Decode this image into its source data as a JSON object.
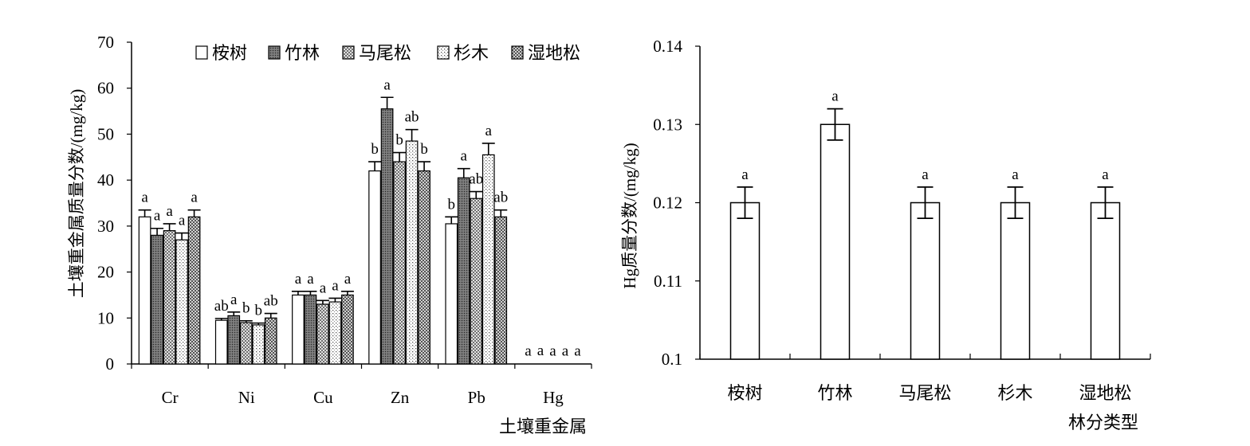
{
  "chart_data": [
    {
      "type": "bar",
      "categories": [
        "Cr",
        "Ni",
        "Cu",
        "Zn",
        "Pb",
        "Hg"
      ],
      "xlabel": "土壤重金属",
      "ylabel": "土壤重金属质量分数/(mg/kg)",
      "ylim": [
        0,
        70
      ],
      "yticks": [
        0,
        10,
        20,
        30,
        40,
        50,
        60,
        70
      ],
      "legend_position": "top-right",
      "series": [
        {
          "name": "桉树",
          "fill": "#ffffff",
          "values": [
            32,
            9.5,
            15,
            42,
            30.5,
            0.12
          ],
          "errors": [
            1.5,
            0.4,
            0.8,
            2,
            1.5,
            0
          ],
          "letters": [
            "a",
            "ab",
            "a",
            "b",
            "b",
            "a"
          ]
        },
        {
          "name": "竹林",
          "fill": "pattern-dense",
          "values": [
            28,
            10.5,
            15,
            55.5,
            40.5,
            0.13
          ],
          "errors": [
            1.5,
            0.8,
            0.8,
            2.5,
            2,
            0
          ],
          "letters": [
            "a",
            "a",
            "a",
            "a",
            "a",
            "a"
          ]
        },
        {
          "name": "马尾松",
          "fill": "pattern-cross",
          "values": [
            29,
            9,
            13,
            44,
            36,
            0.12
          ],
          "errors": [
            1.5,
            0.4,
            0.8,
            2,
            1.5,
            0
          ],
          "letters": [
            "a",
            "b",
            "a",
            "b",
            "ab",
            "a"
          ]
        },
        {
          "name": "杉木",
          "fill": "pattern-dots",
          "values": [
            27,
            8.5,
            13.5,
            48.5,
            45.5,
            0.12
          ],
          "errors": [
            1.5,
            0.4,
            0.8,
            2.5,
            2.5,
            0
          ],
          "letters": [
            "a",
            "b",
            "a",
            "ab",
            "a",
            "a"
          ]
        },
        {
          "name": "湿地松",
          "fill": "pattern-check",
          "values": [
            32,
            10,
            15,
            42,
            32,
            0.12
          ],
          "errors": [
            1.5,
            1,
            0.8,
            2,
            1.5,
            0
          ],
          "letters": [
            "a",
            "ab",
            "a",
            "b",
            "ab",
            "a"
          ]
        }
      ]
    },
    {
      "type": "bar",
      "categories": [
        "桉树",
        "竹林",
        "马尾松",
        "杉木",
        "湿地松"
      ],
      "values": [
        0.12,
        0.13,
        0.12,
        0.12,
        0.12
      ],
      "errors": [
        0.002,
        0.002,
        0.002,
        0.002,
        0.002
      ],
      "letters": [
        "a",
        "a",
        "a",
        "a",
        "a"
      ],
      "xlabel": "林分类型",
      "ylabel": "Hg质量分数/(mg/kg)",
      "ylim": [
        0.1,
        0.14
      ],
      "yticks": [
        "0.1",
        "0.11",
        "0.12",
        "0.13",
        "0.14"
      ],
      "fill": "#ffffff"
    }
  ]
}
